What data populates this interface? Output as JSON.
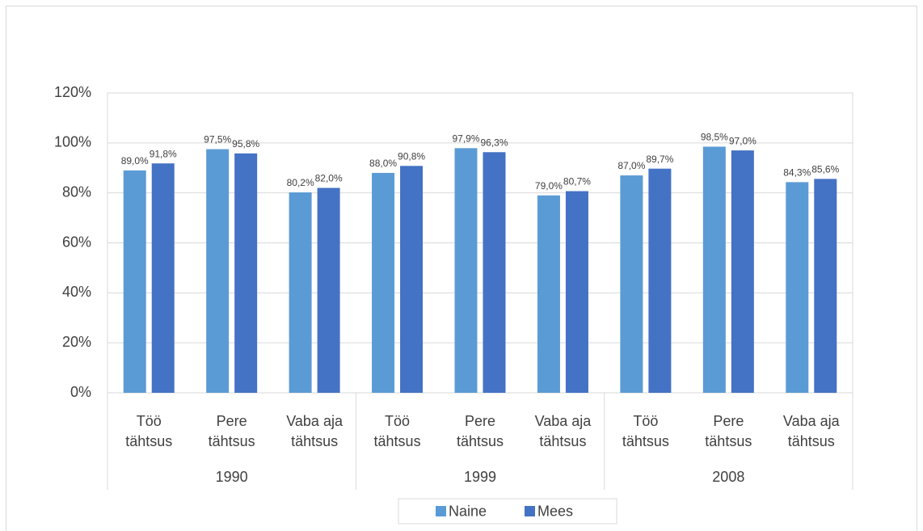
{
  "chart_data": {
    "type": "bar",
    "categories": [
      [
        "Töö",
        "tähtsus"
      ],
      [
        "Pere",
        "tähtsus"
      ],
      [
        "Vaba aja",
        "tähtsus"
      ],
      [
        "Töö",
        "tähtsus"
      ],
      [
        "Pere",
        "tähtsus"
      ],
      [
        "Vaba aja",
        "tähtsus"
      ],
      [
        "Töö",
        "tähtsus"
      ],
      [
        "Pere",
        "tähtsus"
      ],
      [
        "Vaba aja",
        "tähtsus"
      ]
    ],
    "groups": [
      "1990",
      "1999",
      "2008"
    ],
    "series": [
      {
        "name": "Naine",
        "color": "#5b9bd5",
        "values": [
          89.0,
          97.5,
          80.2,
          88.0,
          97.9,
          79.0,
          87.0,
          98.5,
          84.3
        ],
        "value_labels": [
          "89,0%",
          "97,5%",
          "80,2%",
          "88,0%",
          "97,9%",
          "79,0%",
          "87,0%",
          "98,5%",
          "84,3%"
        ]
      },
      {
        "name": "Mees",
        "color": "#4472c4",
        "values": [
          91.8,
          95.8,
          82.0,
          90.8,
          96.3,
          80.7,
          89.7,
          97.0,
          85.6
        ],
        "value_labels": [
          "91,8%",
          "95,8%",
          "82,0%",
          "90,8%",
          "96,3%",
          "80,7%",
          "89,7%",
          "97,0%",
          "85,6%"
        ]
      }
    ],
    "ylim": [
      0,
      120
    ],
    "yticks": [
      {
        "value": 0,
        "label": "0%"
      },
      {
        "value": 20,
        "label": "20%"
      },
      {
        "value": 40,
        "label": "40%"
      },
      {
        "value": 60,
        "label": "60%"
      },
      {
        "value": 80,
        "label": "80%"
      },
      {
        "value": 100,
        "label": "100%"
      },
      {
        "value": 120,
        "label": "120%"
      }
    ],
    "grid": true,
    "legend": "bottom"
  }
}
